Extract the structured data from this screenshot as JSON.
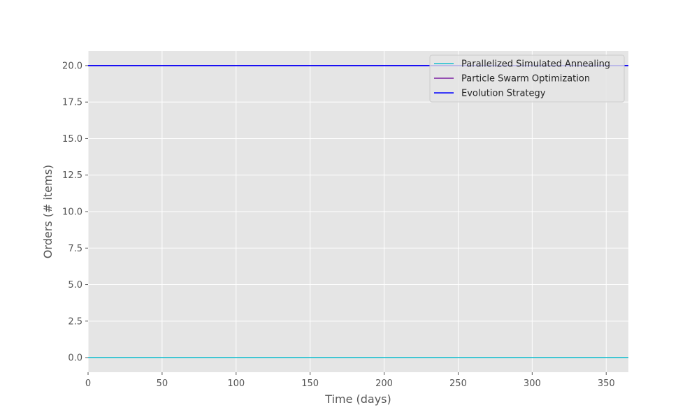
{
  "chart_data": {
    "type": "line",
    "title": "",
    "xlabel": "Time (days)",
    "ylabel": "Orders (# items)",
    "xlim": [
      0,
      365
    ],
    "ylim": [
      -1,
      21
    ],
    "xticks": [
      0,
      50,
      100,
      150,
      200,
      250,
      300,
      350
    ],
    "yticks": [
      0.0,
      2.5,
      5.0,
      7.5,
      10.0,
      12.5,
      15.0,
      17.5,
      20.0
    ],
    "xtick_labels": [
      "0",
      "50",
      "100",
      "150",
      "200",
      "250",
      "300",
      "350"
    ],
    "ytick_labels": [
      "0.0",
      "2.5",
      "5.0",
      "7.5",
      "10.0",
      "12.5",
      "15.0",
      "17.5",
      "20.0"
    ],
    "grid": true,
    "style": "ggplot",
    "legend_position": "top-right",
    "series": [
      {
        "name": "Parallelized Simulated Annealing",
        "color": "#17becf",
        "x": [
          0,
          365
        ],
        "y": [
          0,
          0
        ]
      },
      {
        "name": "Particle Swarm Optimization",
        "color": "#7b1fa2",
        "x": [
          0,
          365
        ],
        "y": [
          20,
          20
        ]
      },
      {
        "name": "Evolution Strategy",
        "color": "#0000ff",
        "x": [
          0,
          365
        ],
        "y": [
          20,
          20
        ]
      }
    ]
  },
  "colors": {
    "plot_background": "#e5e5e5",
    "grid": "#ffffff",
    "tick_text": "#555555",
    "legend_text": "#262626"
  }
}
